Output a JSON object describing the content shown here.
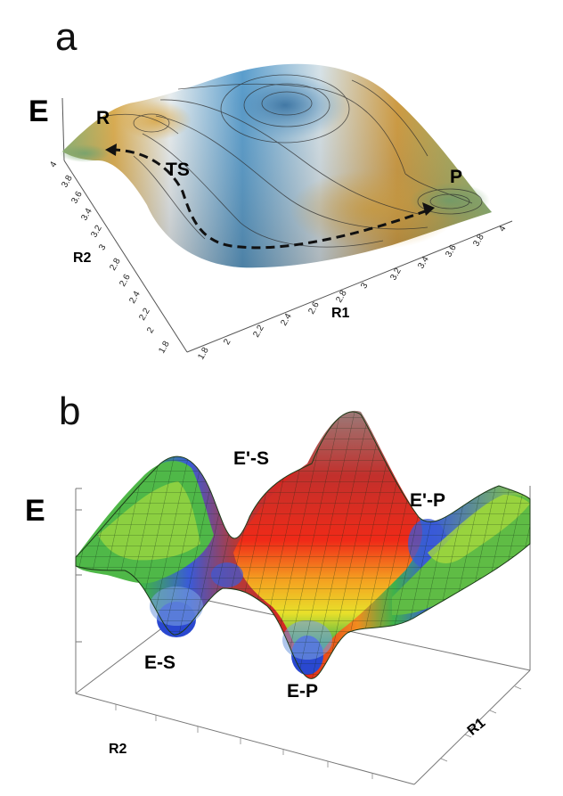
{
  "panel_a": {
    "letter": "a",
    "energy_label": "E",
    "points": {
      "reactant": "R",
      "transition_state": "TS",
      "product": "P"
    },
    "r1_label": "R1",
    "r2_label": "R2",
    "r1_ticks": [
      "1.8",
      "2",
      "2.2",
      "2.4",
      "2.6",
      "2.8",
      "3",
      "3.2",
      "3.4",
      "3.6",
      "3.8",
      "4"
    ],
    "r2_ticks": [
      "4",
      "3.8",
      "3.6",
      "3.4",
      "3.2",
      "3",
      "2.8",
      "2.6",
      "2.4",
      "2.2",
      "2",
      "1.8"
    ]
  },
  "panel_b": {
    "letter": "b",
    "energy_label": "E",
    "points": {
      "es": "E-S",
      "ep": "E-P",
      "es_prime": "E'-S",
      "ep_prime": "E'-P"
    },
    "r1_label": "R1",
    "r2_label": "R2"
  },
  "colors": {
    "blue": "#2f7fb8",
    "amber": "#c88a1e",
    "green": "#7aa85a",
    "red": "#e0201a",
    "orange": "#f28c1e",
    "yellow": "#e8e02a",
    "mesh_green": "#3fb24a"
  }
}
